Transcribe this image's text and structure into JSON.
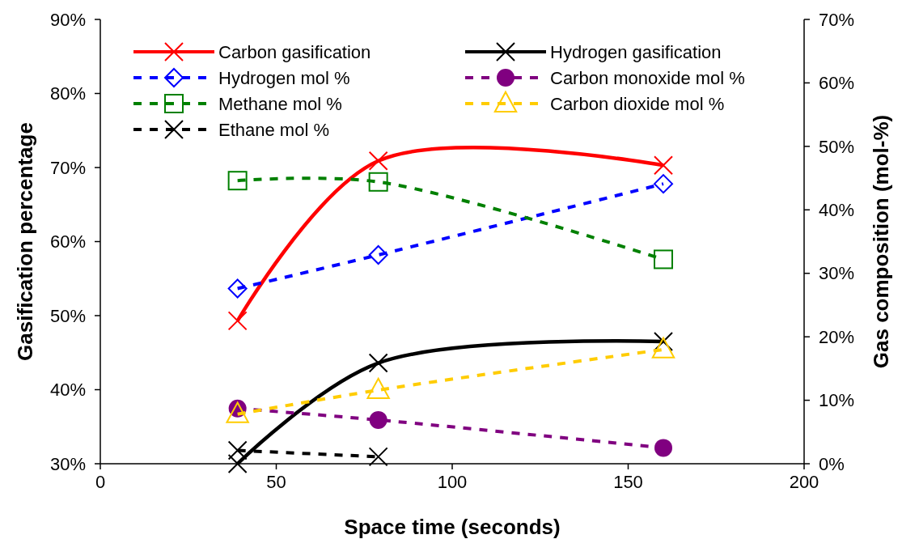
{
  "chart_data": {
    "type": "line",
    "xlabel": "Space time (seconds)",
    "ylabel": "Gasification percentage",
    "y2label": "Gas composition (mol-%)",
    "x": [
      39,
      79,
      160
    ],
    "xlim": [
      0,
      200
    ],
    "xticks": [
      0,
      50,
      100,
      150,
      200
    ],
    "ylim": [
      30,
      90
    ],
    "yticks": [
      {
        "value": 30,
        "label": "30%"
      },
      {
        "value": 40,
        "label": "40%"
      },
      {
        "value": 50,
        "label": "50%"
      },
      {
        "value": 60,
        "label": "60%"
      },
      {
        "value": 70,
        "label": "70%"
      },
      {
        "value": 80,
        "label": "80%"
      },
      {
        "value": 90,
        "label": "90%"
      }
    ],
    "y2lim": [
      0,
      70
    ],
    "y2ticks": [
      {
        "value": 0,
        "label": "0%"
      },
      {
        "value": 10,
        "label": "10%"
      },
      {
        "value": 20,
        "label": "20%"
      },
      {
        "value": 30,
        "label": "30%"
      },
      {
        "value": 40,
        "label": "40%"
      },
      {
        "value": 50,
        "label": "50%"
      },
      {
        "value": 60,
        "label": "60%"
      },
      {
        "value": 70,
        "label": "70%"
      }
    ],
    "grid": false,
    "legend": "top left",
    "series": [
      {
        "name": "Carbon gasification",
        "color": "#ff0000",
        "values": [
          49.3,
          70.9,
          70.3
        ],
        "marker": "cross",
        "line_style": "solid"
      },
      {
        "name": "Hydrogen gasification",
        "color": "#000000",
        "values": [
          30,
          43.6,
          46.5
        ],
        "marker": "cross",
        "line_style": "solid"
      },
      {
        "name": "Hydrogen mol %",
        "color": "#0000ff",
        "values": [
          27.6,
          32.9,
          44.1
        ],
        "axis": "y2",
        "marker": "diamond",
        "line_style": "dashed"
      },
      {
        "name": "Carbon monoxide mol %",
        "color": "#800080",
        "values": [
          8.7,
          6.9,
          2.5
        ],
        "axis": "y2",
        "marker": "circle",
        "line_style": "dashed"
      },
      {
        "name": "Methane mol %",
        "color": "#008000",
        "values": [
          44.6,
          44.4,
          32.2
        ],
        "axis": "y2",
        "marker": "square",
        "line_style": "dashed"
      },
      {
        "name": "Carbon dioxide mol %",
        "color": "#ffcc00",
        "values": [
          7.8,
          11.6,
          18.0
        ],
        "axis": "y2",
        "marker": "triangle",
        "line_style": "dashed"
      },
      {
        "name": "Ethane mol %",
        "color": "#000000",
        "values": [
          2.1,
          1.1,
          null
        ],
        "axis": "y2",
        "marker": "cross",
        "line_style": "dashed"
      }
    ]
  }
}
